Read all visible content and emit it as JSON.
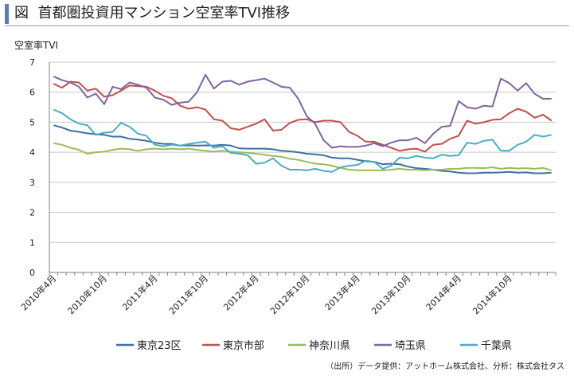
{
  "figure": {
    "title_prefix": "図",
    "title": "首都圏投資用マンション空室率TVI推移",
    "source": "（出所）データ提供：アットホーム株式会社、分析：株式会社タス"
  },
  "chart_data": {
    "type": "line",
    "title": "",
    "ylabel": "空室率TVI",
    "xlabel": "",
    "ylim": [
      0,
      7
    ],
    "yticks": [
      0,
      1,
      2,
      3,
      4,
      5,
      6,
      7
    ],
    "grid": true,
    "legend": "bottom",
    "x": [
      "2010年4月",
      "2010年5月",
      "2010年6月",
      "2010年7月",
      "2010年8月",
      "2010年9月",
      "2010年10月",
      "2010年11月",
      "2010年12月",
      "2011年1月",
      "2011年2月",
      "2011年3月",
      "2011年4月",
      "2011年5月",
      "2011年6月",
      "2011年7月",
      "2011年8月",
      "2011年9月",
      "2011年10月",
      "2011年11月",
      "2011年12月",
      "2012年1月",
      "2012年2月",
      "2012年3月",
      "2012年4月",
      "2012年5月",
      "2012年6月",
      "2012年7月",
      "2012年8月",
      "2012年9月",
      "2012年10月",
      "2012年11月",
      "2012年12月",
      "2013年1月",
      "2013年2月",
      "2013年3月",
      "2013年4月",
      "2013年5月",
      "2013年6月",
      "2013年7月",
      "2013年8月",
      "2013年9月",
      "2013年10月",
      "2013年11月",
      "2013年12月",
      "2014年1月",
      "2014年2月",
      "2014年3月",
      "2014年4月",
      "2014年5月",
      "2014年6月",
      "2014年7月",
      "2014年8月",
      "2014年9月",
      "2014年10月",
      "2014年11月",
      "2014年12月",
      "2015年1月",
      "2015年2月",
      "2015年3月"
    ],
    "x_tick_labels": [
      {
        "index": 0,
        "label": "2010年4月"
      },
      {
        "index": 6,
        "label": "2010年10月"
      },
      {
        "index": 12,
        "label": "2011年4月"
      },
      {
        "index": 18,
        "label": "2011年10月"
      },
      {
        "index": 24,
        "label": "2012年4月"
      },
      {
        "index": 30,
        "label": "2012年10月"
      },
      {
        "index": 36,
        "label": "2013年4月"
      },
      {
        "index": 42,
        "label": "2013年10月"
      },
      {
        "index": 48,
        "label": "2014年4月"
      },
      {
        "index": 54,
        "label": "2014年10月"
      }
    ],
    "series": [
      {
        "name": "東京23区",
        "color": "#3f6fa0",
        "values": [
          4.9,
          4.82,
          4.72,
          4.68,
          4.63,
          4.6,
          4.58,
          4.52,
          4.52,
          4.45,
          4.42,
          4.38,
          4.32,
          4.28,
          4.28,
          4.22,
          4.23,
          4.22,
          4.23,
          4.22,
          4.25,
          4.22,
          4.13,
          4.12,
          4.12,
          4.12,
          4.1,
          4.05,
          4.03,
          4.0,
          3.95,
          3.93,
          3.9,
          3.82,
          3.8,
          3.8,
          3.75,
          3.7,
          3.68,
          3.6,
          3.62,
          3.6,
          3.52,
          3.47,
          3.45,
          3.42,
          3.38,
          3.36,
          3.32,
          3.3,
          3.3,
          3.32,
          3.32,
          3.33,
          3.35,
          3.32,
          3.33,
          3.3,
          3.3,
          3.32
        ]
      },
      {
        "name": "東京市部",
        "color": "#c0504d",
        "values": [
          6.28,
          6.15,
          6.35,
          6.32,
          6.05,
          6.12,
          5.85,
          5.9,
          6.05,
          6.22,
          6.2,
          6.18,
          6.05,
          5.88,
          5.8,
          5.55,
          5.45,
          5.5,
          5.42,
          5.1,
          5.05,
          4.8,
          4.75,
          4.85,
          4.95,
          5.1,
          4.72,
          4.75,
          4.98,
          5.08,
          5.1,
          5.0,
          5.05,
          5.05,
          5.0,
          4.68,
          4.55,
          4.35,
          4.35,
          4.25,
          4.15,
          4.05,
          4.1,
          4.12,
          4.02,
          4.25,
          4.28,
          4.45,
          4.55,
          5.05,
          4.95,
          5.0,
          5.08,
          5.1,
          5.3,
          5.45,
          5.35,
          5.15,
          5.25,
          5.05
        ]
      },
      {
        "name": "神奈川県",
        "color": "#9bbb59",
        "values": [
          4.3,
          4.25,
          4.15,
          4.08,
          3.95,
          4.0,
          4.02,
          4.08,
          4.12,
          4.1,
          4.05,
          4.1,
          4.12,
          4.1,
          4.12,
          4.1,
          4.12,
          4.08,
          4.05,
          4.02,
          4.05,
          4.02,
          4.0,
          3.98,
          3.95,
          3.92,
          3.88,
          3.85,
          3.78,
          3.75,
          3.68,
          3.62,
          3.6,
          3.55,
          3.48,
          3.42,
          3.4,
          3.4,
          3.4,
          3.4,
          3.42,
          3.45,
          3.42,
          3.42,
          3.4,
          3.42,
          3.42,
          3.45,
          3.45,
          3.48,
          3.48,
          3.47,
          3.5,
          3.45,
          3.48,
          3.46,
          3.47,
          3.45,
          3.48,
          3.4
        ]
      },
      {
        "name": "埼玉県",
        "color": "#8064a2",
        "values": [
          6.52,
          6.4,
          6.32,
          6.18,
          5.82,
          5.95,
          5.6,
          6.18,
          6.1,
          6.32,
          6.25,
          6.15,
          5.82,
          5.75,
          5.58,
          5.65,
          5.68,
          6.0,
          6.58,
          6.12,
          6.35,
          6.38,
          6.25,
          6.35,
          6.4,
          6.45,
          6.32,
          6.18,
          6.15,
          5.78,
          5.2,
          4.95,
          4.4,
          4.15,
          4.2,
          4.18,
          4.18,
          4.22,
          4.3,
          4.2,
          4.32,
          4.4,
          4.4,
          4.48,
          4.3,
          4.62,
          4.85,
          4.88,
          5.7,
          5.5,
          5.45,
          5.55,
          5.52,
          6.45,
          6.3,
          6.05,
          6.3,
          5.95,
          5.78,
          5.78
        ]
      },
      {
        "name": "千葉県",
        "color": "#4bacc6",
        "values": [
          5.42,
          5.3,
          5.1,
          4.95,
          4.9,
          4.58,
          4.65,
          4.68,
          4.98,
          4.85,
          4.62,
          4.55,
          4.25,
          4.2,
          4.25,
          4.22,
          4.28,
          4.32,
          4.35,
          4.15,
          4.2,
          3.98,
          3.95,
          3.9,
          3.62,
          3.65,
          3.8,
          3.55,
          3.42,
          3.42,
          3.4,
          3.45,
          3.38,
          3.35,
          3.5,
          3.55,
          3.58,
          3.72,
          3.68,
          3.45,
          3.55,
          3.82,
          3.8,
          3.88,
          3.82,
          3.8,
          3.92,
          3.88,
          3.9,
          4.32,
          4.28,
          4.38,
          4.42,
          4.05,
          4.05,
          4.25,
          4.35,
          4.58,
          4.52,
          4.58
        ]
      }
    ]
  }
}
